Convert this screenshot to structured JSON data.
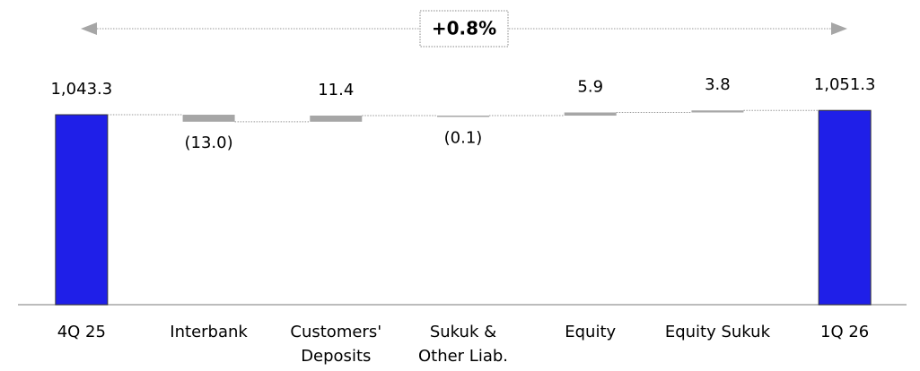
{
  "chart_data": {
    "type": "waterfall",
    "annotation": "+0.8%",
    "categories": [
      "4Q 25",
      "Interbank",
      "Customers'\nDeposits",
      "Sukuk &\nOther Liab.",
      "Equity",
      "Equity Sukuk",
      "1Q 26"
    ],
    "values": [
      1043.3,
      -13.0,
      11.4,
      -0.1,
      5.9,
      3.8,
      1051.3
    ],
    "value_labels": [
      "1,043.3",
      "(13.0)",
      "11.4",
      "(0.1)",
      "5.9",
      "3.8",
      "1,051.3"
    ],
    "total_color": "#1f1fe8",
    "delta_color": "#a6a6a6",
    "ylim": [
      690,
      1090
    ]
  }
}
